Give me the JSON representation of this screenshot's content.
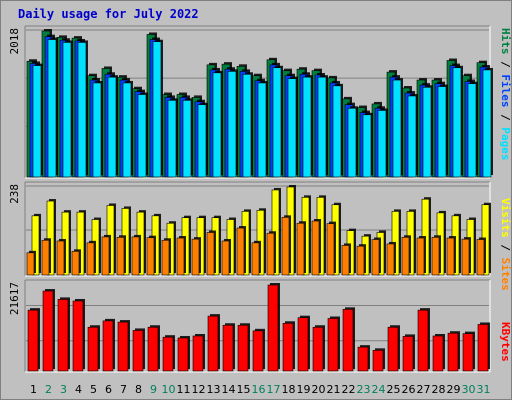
{
  "title": "Daily usage for July 2022",
  "colors": {
    "hits": "#008040",
    "files": "#0040ff",
    "pages": "#00e0ff",
    "visits": "#ffff00",
    "sites": "#ff8000",
    "kbytes": "#ff0000",
    "weekday": "#000000",
    "weekend": "#00805c"
  },
  "chart_data": [
    {
      "type": "bar",
      "categories": [
        "1",
        "2",
        "3",
        "4",
        "5",
        "6",
        "7",
        "8",
        "9",
        "10",
        "11",
        "12",
        "13",
        "14",
        "15",
        "16",
        "17",
        "18",
        "19",
        "20",
        "21",
        "22",
        "23",
        "24",
        "25",
        "26",
        "27",
        "28",
        "29",
        "30",
        "31"
      ],
      "weekend_days": [
        "2",
        "3",
        "9",
        "10",
        "16",
        "17",
        "23",
        "24",
        "30",
        "31"
      ],
      "series": [
        {
          "name": "Hits",
          "values": [
            1600,
            2018,
            1930,
            1920,
            1400,
            1500,
            1380,
            1220,
            1970,
            1140,
            1140,
            1100,
            1550,
            1560,
            1530,
            1400,
            1620,
            1470,
            1490,
            1470,
            1370,
            1080,
            960,
            1010,
            1450,
            1230,
            1340,
            1340,
            1610,
            1400,
            1580
          ]
        },
        {
          "name": "Files",
          "values": [
            1570,
            1940,
            1890,
            1880,
            1340,
            1420,
            1340,
            1180,
            1900,
            1100,
            1100,
            1040,
            1480,
            1490,
            1460,
            1330,
            1550,
            1400,
            1420,
            1410,
            1300,
            1000,
            890,
            950,
            1380,
            1160,
            1270,
            1290,
            1540,
            1320,
            1520
          ]
        },
        {
          "name": "Pages",
          "values": [
            1540,
            1900,
            1860,
            1860,
            1300,
            1380,
            1300,
            1140,
            1870,
            1060,
            1060,
            1000,
            1440,
            1460,
            1420,
            1300,
            1510,
            1360,
            1380,
            1380,
            1260,
            950,
            860,
            920,
            1340,
            1120,
            1240,
            1250,
            1510,
            1290,
            1480
          ]
        }
      ],
      "ytick": "2018",
      "legend": [
        "Hits",
        "Files",
        "Pages"
      ]
    },
    {
      "type": "bar",
      "categories": [
        "1",
        "2",
        "3",
        "4",
        "5",
        "6",
        "7",
        "8",
        "9",
        "10",
        "11",
        "12",
        "13",
        "14",
        "15",
        "16",
        "17",
        "18",
        "19",
        "20",
        "21",
        "22",
        "23",
        "24",
        "25",
        "26",
        "27",
        "28",
        "29",
        "30",
        "31"
      ],
      "series": [
        {
          "name": "Visits",
          "values": [
            160,
            200,
            170,
            170,
            150,
            188,
            180,
            170,
            160,
            140,
            155,
            155,
            155,
            150,
            172,
            175,
            230,
            238,
            210,
            210,
            190,
            120,
            105,
            115,
            172,
            172,
            205,
            168,
            160,
            150,
            190
          ]
        },
        {
          "name": "Sites",
          "values": [
            60,
            94,
            92,
            64,
            87,
            103,
            102,
            103,
            101,
            94,
            100,
            97,
            115,
            92,
            127,
            87,
            113,
            156,
            140,
            146,
            139,
            80,
            78,
            96,
            84,
            102,
            100,
            102,
            100,
            97,
            96
          ]
        }
      ],
      "ytick": "238",
      "legend": [
        "Visits",
        "Sites"
      ]
    },
    {
      "type": "bar",
      "categories": [
        "1",
        "2",
        "3",
        "4",
        "5",
        "6",
        "7",
        "8",
        "9",
        "10",
        "11",
        "12",
        "13",
        "14",
        "15",
        "16",
        "17",
        "18",
        "19",
        "20",
        "21",
        "22",
        "23",
        "24",
        "25",
        "26",
        "27",
        "28",
        "29",
        "30",
        "31"
      ],
      "series": [
        {
          "name": "KBytes",
          "values": [
            15300,
            20100,
            18000,
            17600,
            11000,
            12600,
            12300,
            10200,
            11000,
            8500,
            8300,
            8800,
            13800,
            11500,
            11500,
            10100,
            21617,
            12000,
            13400,
            11000,
            13200,
            15500,
            6000,
            5200,
            11000,
            8700,
            15300,
            8800,
            9500,
            9400,
            11700
          ]
        }
      ],
      "ytick": "21617",
      "legend": [
        "KBytes"
      ]
    }
  ]
}
